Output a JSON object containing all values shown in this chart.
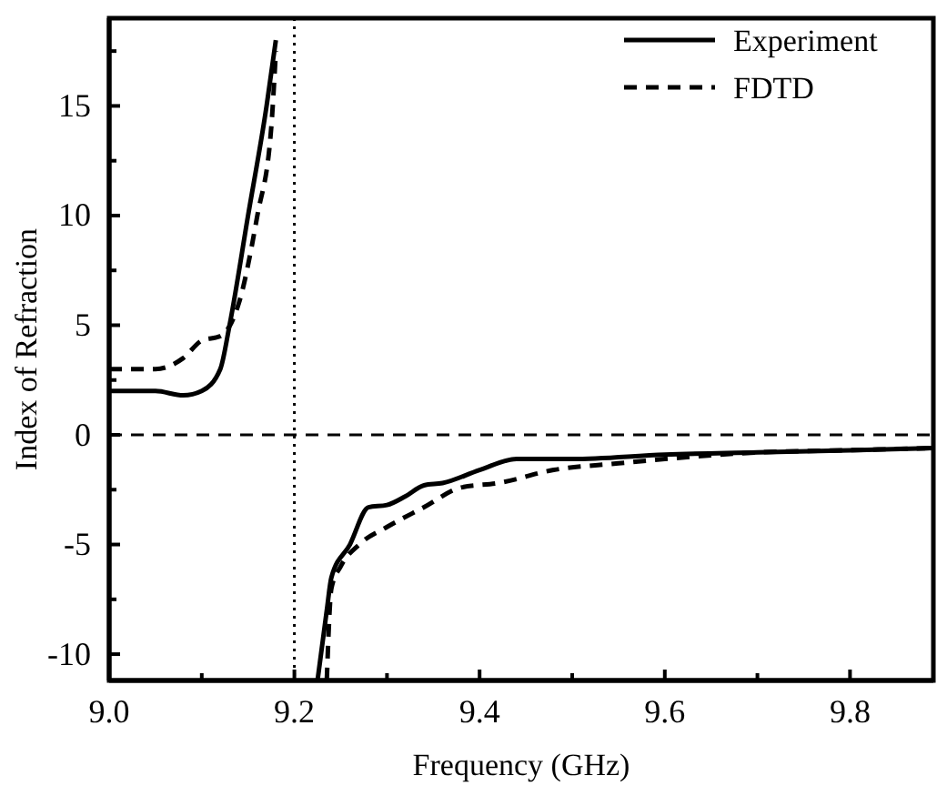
{
  "chart_data": {
    "type": "line",
    "xlabel": "Frequency (GHz)",
    "ylabel": "Index of Refraction",
    "xlim": [
      9.0,
      9.89
    ],
    "ylim": [
      -11.2,
      19
    ],
    "xticks": [
      {
        "value": 9.0,
        "label": "9.0"
      },
      {
        "value": 9.1,
        "label": null
      },
      {
        "value": 9.2,
        "label": "9.2"
      },
      {
        "value": 9.3,
        "label": null
      },
      {
        "value": 9.4,
        "label": "9.4"
      },
      {
        "value": 9.5,
        "label": null
      },
      {
        "value": 9.6,
        "label": "9.6"
      },
      {
        "value": 9.7,
        "label": null
      },
      {
        "value": 9.8,
        "label": "9.8"
      }
    ],
    "yticks": [
      {
        "value": -10,
        "label": "-10"
      },
      {
        "value": -7.5,
        "label": null
      },
      {
        "value": -5,
        "label": "-5"
      },
      {
        "value": -2.5,
        "label": null
      },
      0,
      {
        "value": 2.5,
        "label": null
      },
      5,
      {
        "value": 7.5,
        "label": null
      },
      10,
      {
        "value": 12.5,
        "label": null
      },
      15,
      {
        "value": 17.5,
        "label": null
      }
    ],
    "grid": false,
    "legend": "top right",
    "marker": "none",
    "ref_lines": [
      {
        "axis": "y",
        "value": 0,
        "line_style": "dashed",
        "color": "#000000"
      },
      {
        "axis": "x",
        "value": 9.2,
        "line_style": "dotted",
        "color": "#000000"
      }
    ],
    "series": [
      {
        "name": "Experiment",
        "color": "#000000",
        "line_style": "solid",
        "x": [
          9.0,
          9.05,
          9.08,
          9.1,
          9.12,
          9.13,
          9.15,
          9.17,
          9.18,
          9.2,
          9.225,
          9.235,
          9.24,
          9.26,
          9.28,
          9.3,
          9.32,
          9.34,
          9.36,
          9.4,
          9.44,
          9.5,
          9.6,
          9.7,
          9.8,
          9.89
        ],
        "values": [
          2.0,
          2.0,
          1.8,
          2.0,
          3.0,
          5,
          10,
          15,
          18,
          null,
          -11.2,
          -8,
          -6.5,
          -5,
          -3.3,
          -3.2,
          -2.8,
          -2.3,
          -2.2,
          -1.6,
          -1.1,
          -1.1,
          -0.9,
          -0.8,
          -0.7,
          -0.6
        ]
      },
      {
        "name": "FDTD",
        "color": "#000000",
        "line_style": "dashed",
        "x": [
          9.0,
          9.05,
          9.08,
          9.1,
          9.12,
          9.14,
          9.16,
          9.175,
          9.18,
          9.2,
          9.235,
          9.24,
          9.25,
          9.27,
          9.3,
          9.34,
          9.38,
          9.42,
          9.48,
          9.55,
          9.6,
          9.7,
          9.8,
          9.89
        ],
        "values": [
          3.0,
          3.0,
          3.5,
          4.3,
          4.5,
          6,
          10,
          14,
          17.5,
          null,
          -11.2,
          -7,
          -6,
          -5,
          -4.2,
          -3.3,
          -2.4,
          -2.2,
          -1.6,
          -1.3,
          -1.1,
          -0.8,
          -0.7,
          -0.6
        ]
      }
    ]
  }
}
